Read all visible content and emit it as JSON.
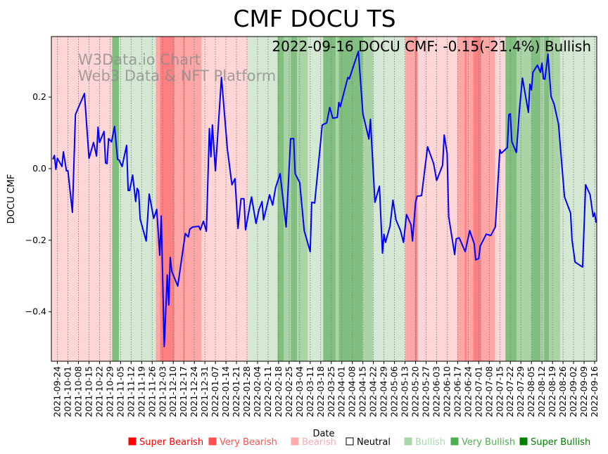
{
  "chart_data": {
    "type": "line",
    "title": "CMF DOCU TS",
    "annotation": "2022-09-16 DOCU CMF: -0.15(-21.4%) Bullish",
    "watermark": [
      "W3Data.io Chart",
      "Web3 Data & NFT Platform"
    ],
    "xlabel": "Date",
    "ylabel": "DOCU CMF",
    "x_unit": "days since 2021-09-24",
    "xlim": [
      -4,
      358.4
    ],
    "ylim": [
      -0.538,
      0.369
    ],
    "grid": "vertical dotted at x ticks",
    "yticks": [
      0.2,
      0.0,
      -0.2,
      -0.4
    ],
    "ytick_labels": [
      "0.2",
      "0.0",
      "−0.2",
      "−0.4"
    ],
    "xtick_labels": [
      "2021-09-24",
      "2021-10-01",
      "2021-10-08",
      "2021-10-15",
      "2021-10-22",
      "2021-10-29",
      "2021-11-05",
      "2021-11-12",
      "2021-11-19",
      "2021-11-26",
      "2021-12-03",
      "2021-12-10",
      "2021-12-17",
      "2021-12-24",
      "2021-12-31",
      "2022-01-07",
      "2022-01-14",
      "2022-01-21",
      "2022-01-28",
      "2022-02-04",
      "2022-02-11",
      "2022-02-18",
      "2022-02-25",
      "2022-03-04",
      "2022-03-11",
      "2022-03-18",
      "2022-03-25",
      "2022-04-01",
      "2022-04-08",
      "2022-04-15",
      "2022-04-22",
      "2022-04-29",
      "2022-05-06",
      "2022-05-13",
      "2022-05-20",
      "2022-05-27",
      "2022-06-03",
      "2022-06-10",
      "2022-06-17",
      "2022-06-24",
      "2022-07-01",
      "2022-07-08",
      "2022-07-15",
      "2022-07-22",
      "2022-07-29",
      "2022-08-05",
      "2022-08-12",
      "2022-08-19",
      "2022-08-26",
      "2022-09-02",
      "2022-09-09",
      "2022-09-16"
    ],
    "xtick_step_days": 7,
    "series": [
      {
        "name": "DOCU CMF",
        "color": "#0000ff",
        "points": [
          [
            -3,
            0.026
          ],
          [
            -2,
            0.037
          ],
          [
            -1,
            -0.002
          ],
          [
            0,
            0.029
          ],
          [
            3,
            0.006
          ],
          [
            4,
            0.047
          ],
          [
            6,
            -0.006
          ],
          [
            7,
            -0.006
          ],
          [
            10,
            -0.122
          ],
          [
            12,
            0.151
          ],
          [
            18,
            0.21
          ],
          [
            21,
            0.029
          ],
          [
            24,
            0.073
          ],
          [
            26,
            0.035
          ],
          [
            27,
            0.116
          ],
          [
            28,
            0.073
          ],
          [
            31,
            0.104
          ],
          [
            32,
            0.016
          ],
          [
            33,
            0.014
          ],
          [
            34,
            0.084
          ],
          [
            36,
            0.075
          ],
          [
            38,
            0.118
          ],
          [
            40,
            0.026
          ],
          [
            41,
            0.024
          ],
          [
            43,
            0.006
          ],
          [
            46,
            0.065
          ],
          [
            47,
            -0.061
          ],
          [
            48,
            -0.061
          ],
          [
            50,
            -0.018
          ],
          [
            52,
            -0.092
          ],
          [
            53,
            -0.055
          ],
          [
            54,
            -0.063
          ],
          [
            55,
            -0.141
          ],
          [
            59,
            -0.202
          ],
          [
            61,
            -0.071
          ],
          [
            64,
            -0.139
          ],
          [
            66,
            -0.114
          ],
          [
            68,
            -0.242
          ],
          [
            69,
            -0.132
          ],
          [
            71,
            -0.497
          ],
          [
            73,
            -0.297
          ],
          [
            74,
            -0.381
          ],
          [
            75,
            -0.248
          ],
          [
            76,
            -0.287
          ],
          [
            80,
            -0.328
          ],
          [
            85,
            -0.181
          ],
          [
            87,
            -0.191
          ],
          [
            88,
            -0.169
          ],
          [
            90,
            -0.163
          ],
          [
            94,
            -0.161
          ],
          [
            95,
            -0.171
          ],
          [
            97,
            -0.147
          ],
          [
            99,
            -0.175
          ],
          [
            101,
            0.112
          ],
          [
            102,
            0.033
          ],
          [
            103,
            0.122
          ],
          [
            105,
            -0.006
          ],
          [
            109,
            0.255
          ],
          [
            113,
            0.053
          ],
          [
            116,
            -0.045
          ],
          [
            118,
            -0.028
          ],
          [
            120,
            -0.167
          ],
          [
            122,
            -0.084
          ],
          [
            124,
            -0.084
          ],
          [
            125,
            -0.171
          ],
          [
            129,
            -0.079
          ],
          [
            132,
            -0.153
          ],
          [
            134,
            -0.114
          ],
          [
            136,
            -0.092
          ],
          [
            137,
            -0.143
          ],
          [
            141,
            -0.073
          ],
          [
            143,
            -0.102
          ],
          [
            145,
            -0.053
          ],
          [
            148,
            -0.014
          ],
          [
            152,
            -0.163
          ],
          [
            155,
            0.084
          ],
          [
            157,
            0.084
          ],
          [
            158,
            -0.014
          ],
          [
            161,
            -0.039
          ],
          [
            164,
            -0.173
          ],
          [
            168,
            -0.232
          ],
          [
            169,
            -0.094
          ],
          [
            171,
            -0.096
          ],
          [
            176,
            0.122
          ],
          [
            179,
            0.128
          ],
          [
            181,
            0.171
          ],
          [
            183,
            0.141
          ],
          [
            186,
            0.143
          ],
          [
            187,
            0.185
          ],
          [
            188,
            0.173
          ],
          [
            193,
            0.255
          ],
          [
            194,
            0.251
          ],
          [
            200,
            0.328
          ],
          [
            203,
            0.153
          ],
          [
            207,
            0.083
          ],
          [
            208,
            0.138
          ],
          [
            211,
            -0.094
          ],
          [
            214,
            -0.049
          ],
          [
            216,
            -0.236
          ],
          [
            217,
            -0.183
          ],
          [
            218,
            -0.206
          ],
          [
            221,
            -0.161
          ],
          [
            223,
            -0.088
          ],
          [
            225,
            -0.143
          ],
          [
            228,
            -0.173
          ],
          [
            230,
            -0.206
          ],
          [
            232,
            -0.128
          ],
          [
            235,
            -0.157
          ],
          [
            236,
            -0.202
          ],
          [
            238,
            -0.094
          ],
          [
            239,
            -0.077
          ],
          [
            242,
            -0.075
          ],
          [
            244,
            -0.006
          ],
          [
            246,
            0.061
          ],
          [
            250,
            0.014
          ],
          [
            252,
            -0.033
          ],
          [
            256,
            0.01
          ],
          [
            257,
            0.094
          ],
          [
            259,
            0.043
          ],
          [
            260,
            -0.134
          ],
          [
            264,
            -0.24
          ],
          [
            265,
            -0.196
          ],
          [
            267,
            -0.193
          ],
          [
            271,
            -0.232
          ],
          [
            274,
            -0.173
          ],
          [
            277,
            -0.21
          ],
          [
            278,
            -0.255
          ],
          [
            280,
            -0.251
          ],
          [
            281,
            -0.216
          ],
          [
            285,
            -0.183
          ],
          [
            288,
            -0.187
          ],
          [
            291,
            -0.163
          ],
          [
            294,
            0.053
          ],
          [
            295,
            0.043
          ],
          [
            299,
            0.059
          ],
          [
            300,
            0.151
          ],
          [
            301,
            0.153
          ],
          [
            302,
            0.075
          ],
          [
            305,
            0.045
          ],
          [
            307,
            0.163
          ],
          [
            309,
            0.253
          ],
          [
            313,
            0.157
          ],
          [
            314,
            0.236
          ],
          [
            315,
            0.22
          ],
          [
            316,
            0.269
          ],
          [
            319,
            0.289
          ],
          [
            321,
            0.269
          ],
          [
            322,
            0.295
          ],
          [
            323,
            0.251
          ],
          [
            324,
            0.25
          ],
          [
            326,
            0.32
          ],
          [
            328,
            0.202
          ],
          [
            330,
            0.181
          ],
          [
            333,
            0.124
          ],
          [
            335,
            0.02
          ],
          [
            337,
            -0.079
          ],
          [
            341,
            -0.124
          ],
          [
            342,
            -0.2
          ],
          [
            344,
            -0.261
          ],
          [
            349,
            -0.275
          ],
          [
            351,
            -0.045
          ],
          [
            354,
            -0.073
          ],
          [
            356,
            -0.134
          ],
          [
            357,
            -0.124
          ],
          [
            358,
            -0.151
          ]
        ]
      }
    ],
    "sentiment_bands": [
      [
        -4,
        36.4,
        -1
      ],
      [
        36.4,
        41,
        3
      ],
      [
        41,
        65.4,
        1
      ],
      [
        65.4,
        68.2,
        -2
      ],
      [
        68.2,
        78,
        -3
      ],
      [
        78,
        83.6,
        -2
      ],
      [
        83.6,
        84.6,
        -3
      ],
      [
        84.6,
        95.8,
        -2
      ],
      [
        95.8,
        126.6,
        -1
      ],
      [
        126.6,
        146.3,
        1
      ],
      [
        146.3,
        150.5,
        3
      ],
      [
        150.5,
        155.1,
        2
      ],
      [
        155.1,
        159.3,
        3
      ],
      [
        159.3,
        166.4,
        2
      ],
      [
        166.4,
        176.6,
        1
      ],
      [
        176.6,
        185,
        3
      ],
      [
        185,
        187,
        2
      ],
      [
        187,
        202.8,
        3
      ],
      [
        202.8,
        209.8,
        2
      ],
      [
        209.8,
        231.3,
        1
      ],
      [
        231.3,
        237.4,
        -2
      ],
      [
        237.4,
        239.3,
        -3
      ],
      [
        239.3,
        265.9,
        -1
      ],
      [
        265.9,
        270.6,
        -2
      ],
      [
        270.6,
        272,
        -3
      ],
      [
        272,
        276.2,
        -2
      ],
      [
        276.2,
        281.8,
        -3
      ],
      [
        281.8,
        290.7,
        -2
      ],
      [
        290.7,
        297.7,
        -1
      ],
      [
        297.7,
        305.1,
        3
      ],
      [
        305.1,
        315,
        2
      ],
      [
        315,
        321,
        3
      ],
      [
        321,
        323.4,
        2
      ],
      [
        323.4,
        326.6,
        3
      ],
      [
        326.6,
        334.1,
        2
      ],
      [
        334.1,
        358.4,
        1
      ]
    ],
    "band_colors": {
      "-3": "#ff8080",
      "-2": "#ffa6a6",
      "-1": "#ffd5d5",
      "1": "#d5e8d4",
      "2": "#aad4a6",
      "3": "#80bf80"
    },
    "legend": [
      {
        "label": "Super Bearish",
        "color": "#ff0000"
      },
      {
        "label": "Very Bearish",
        "color": "#ff5050"
      },
      {
        "label": "Bearish",
        "color": "#ffaaaa"
      },
      {
        "label": "Neutral",
        "color": "#000000",
        "hollow": true
      },
      {
        "label": "Bullish",
        "color": "#a8d8a8"
      },
      {
        "label": "Very Bullish",
        "color": "#4caf50"
      },
      {
        "label": "Super Bullish",
        "color": "#008000"
      }
    ],
    "legend_placement": "bottom"
  }
}
